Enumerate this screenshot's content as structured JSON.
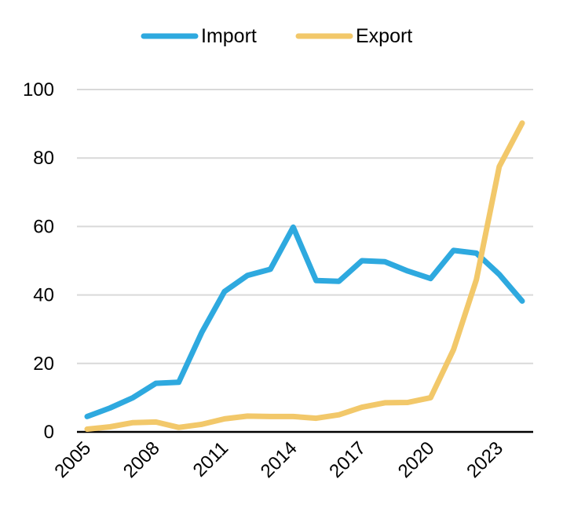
{
  "chart_data": {
    "type": "line",
    "title": "",
    "xlabel": "",
    "ylabel": "",
    "x": [
      2005,
      2006,
      2007,
      2008,
      2009,
      2010,
      2011,
      2012,
      2013,
      2014,
      2015,
      2016,
      2017,
      2018,
      2019,
      2020,
      2021,
      2022,
      2023,
      2024
    ],
    "x_tick_labels": [
      "2005",
      "2008",
      "2011",
      "2014",
      "2017",
      "2020",
      "2023"
    ],
    "y_tick_labels": [
      "0",
      "20",
      "40",
      "60",
      "80",
      "100"
    ],
    "ylim": [
      0,
      100
    ],
    "grid": true,
    "legend_position": "top",
    "series": [
      {
        "name": "Import",
        "color": "#2EA9DF",
        "values": [
          4.5,
          7.0,
          10.0,
          14.2,
          14.5,
          29.0,
          41.0,
          45.7,
          47.5,
          59.8,
          44.2,
          44.0,
          50.0,
          49.7,
          47.0,
          44.8,
          53.0,
          52.2,
          46.0,
          38.2
        ]
      },
      {
        "name": "Export",
        "color": "#F2C86A",
        "values": [
          0.8,
          1.5,
          2.7,
          2.9,
          1.3,
          2.2,
          3.8,
          4.6,
          4.5,
          4.5,
          4.0,
          5.0,
          7.2,
          8.5,
          8.6,
          10.0,
          24.0,
          44.5,
          77.5,
          90.2
        ]
      }
    ]
  }
}
